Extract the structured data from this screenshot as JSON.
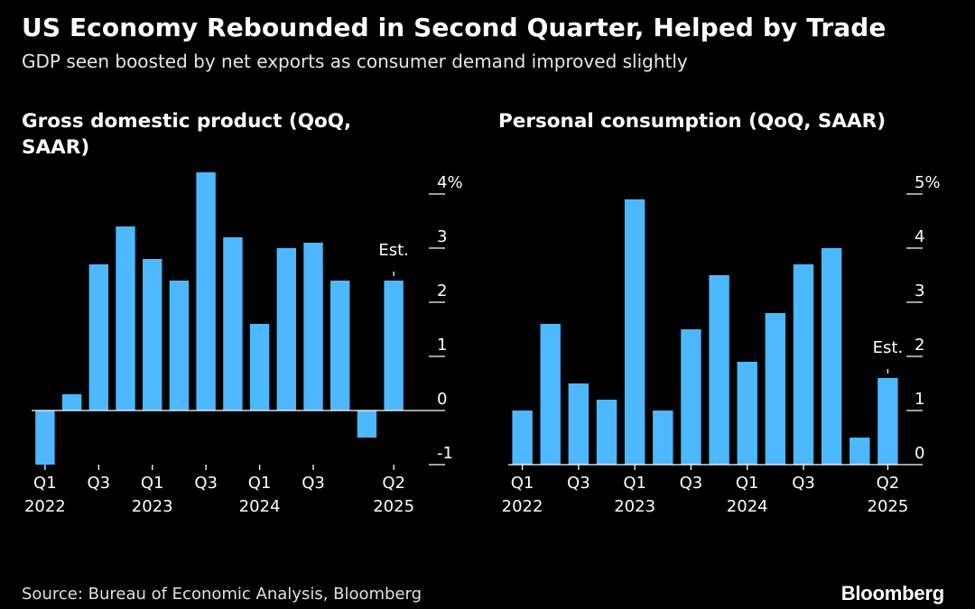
{
  "title": "US Economy Rebounded in Second Quarter, Helped by Trade",
  "subtitle": "GDP seen boosted by net exports as consumer demand improved slightly",
  "source": "Source: Bureau of Economic Analysis, Bloomberg",
  "brand": "Bloomberg",
  "colors": {
    "bar": "#4db8ff",
    "background": "#000000",
    "text": "#ffffff"
  },
  "chart_data": [
    {
      "type": "bar",
      "title": "Gross domestic product (QoQ, SAAR)",
      "categories": [
        "Q1 2022",
        "Q2 2022",
        "Q3 2022",
        "Q4 2022",
        "Q1 2023",
        "Q2 2023",
        "Q3 2023",
        "Q4 2023",
        "Q1 2024",
        "Q2 2024",
        "Q3 2024",
        "Q4 2024",
        "Q1 2025",
        "Q2 2025"
      ],
      "values": [
        -1.0,
        0.3,
        2.7,
        3.4,
        2.8,
        2.4,
        4.4,
        3.2,
        1.6,
        3.0,
        3.1,
        2.4,
        -0.5,
        2.4
      ],
      "ylim": [
        -1,
        4
      ],
      "yticks": [
        -1,
        0,
        1,
        2,
        3,
        4
      ],
      "ytick_labels": [
        "-1",
        "0",
        "1",
        "2",
        "3",
        "4%"
      ],
      "x_tick_labels": [
        {
          "index": 0,
          "quarter": "Q1",
          "year": "2022"
        },
        {
          "index": 2,
          "quarter": "Q3",
          "year": ""
        },
        {
          "index": 4,
          "quarter": "Q1",
          "year": "2023"
        },
        {
          "index": 6,
          "quarter": "Q3",
          "year": ""
        },
        {
          "index": 8,
          "quarter": "Q1",
          "year": "2024"
        },
        {
          "index": 10,
          "quarter": "Q3",
          "year": ""
        },
        {
          "index": 13,
          "quarter": "Q2",
          "year": "2025"
        }
      ],
      "annotation": {
        "text": "Est.",
        "index": 13
      }
    },
    {
      "type": "bar",
      "title": "Personal consumption (QoQ, SAAR)",
      "categories": [
        "Q1 2022",
        "Q2 2022",
        "Q3 2022",
        "Q4 2022",
        "Q1 2023",
        "Q2 2023",
        "Q3 2023",
        "Q4 2023",
        "Q1 2024",
        "Q2 2024",
        "Q3 2024",
        "Q4 2024",
        "Q1 2025",
        "Q2 2025"
      ],
      "values": [
        1.0,
        2.6,
        1.5,
        1.2,
        4.9,
        1.0,
        2.5,
        3.5,
        1.9,
        2.8,
        3.7,
        4.0,
        0.5,
        1.6
      ],
      "ylim": [
        0,
        5
      ],
      "yticks": [
        0,
        1,
        2,
        3,
        4,
        5
      ],
      "ytick_labels": [
        "0",
        "1",
        "2",
        "3",
        "4",
        "5%"
      ],
      "x_tick_labels": [
        {
          "index": 0,
          "quarter": "Q1",
          "year": "2022"
        },
        {
          "index": 2,
          "quarter": "Q3",
          "year": ""
        },
        {
          "index": 4,
          "quarter": "Q1",
          "year": "2023"
        },
        {
          "index": 6,
          "quarter": "Q3",
          "year": ""
        },
        {
          "index": 8,
          "quarter": "Q1",
          "year": "2024"
        },
        {
          "index": 10,
          "quarter": "Q3",
          "year": ""
        },
        {
          "index": 13,
          "quarter": "Q2",
          "year": "2025"
        }
      ],
      "annotation": {
        "text": "Est.",
        "index": 13
      }
    }
  ]
}
